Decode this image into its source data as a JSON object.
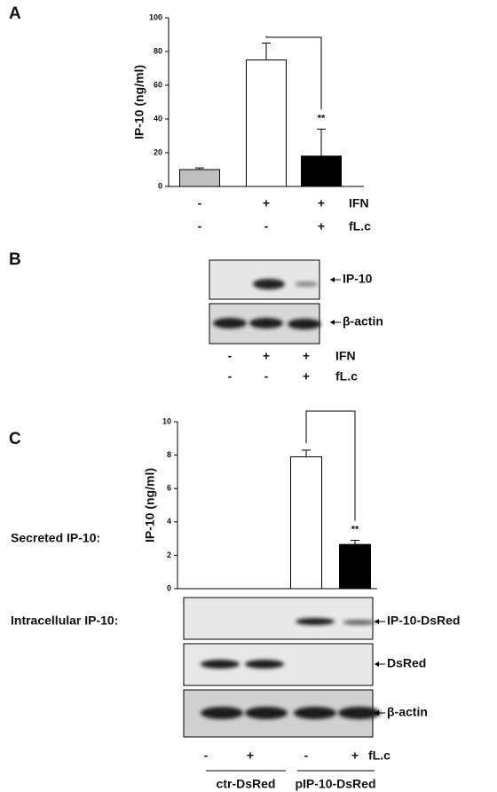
{
  "panel_labels": [
    "A",
    "B",
    "C"
  ],
  "chart_data": [
    {
      "type": "bar",
      "y_label": "IP-10 (ng/ml)",
      "values": [
        10,
        75,
        18
      ],
      "errors": [
        1,
        10,
        16
      ],
      "colors": [
        "#c0c0c0",
        "#ffffff",
        "#000000"
      ],
      "ylim": [
        0,
        100
      ],
      "yticks": [
        0,
        20,
        40,
        60,
        80,
        100
      ],
      "annotation": "**",
      "condition_rows": [
        {
          "name": "IFN",
          "signs": [
            "-",
            "+",
            "+"
          ]
        },
        {
          "name": "fL.c",
          "signs": [
            "-",
            "-",
            "+"
          ]
        }
      ]
    },
    {
      "type": "bar",
      "y_label": "IP-10 (ng/ml)",
      "values": [
        0,
        0,
        7.9,
        2.65
      ],
      "errors": [
        0,
        0,
        0.4,
        0.25
      ],
      "colors": [
        "#ffffff",
        "#000000",
        "#ffffff",
        "#000000"
      ],
      "ylim": [
        0,
        10
      ],
      "yticks": [
        0,
        2,
        4,
        6,
        8,
        10
      ],
      "annotation": "**",
      "condition_rows": [
        {
          "name": "fL.c",
          "signs": [
            "-",
            "+",
            "-",
            "+"
          ]
        }
      ],
      "groups": [
        "ctr-DsRed",
        "pIP-10-DsRed"
      ]
    }
  ],
  "blot_b": {
    "labels": [
      "IP-10",
      "β-actin"
    ],
    "condition_rows": [
      {
        "name": "IFN",
        "signs": [
          "-",
          "+",
          "+"
        ]
      },
      {
        "name": "fL.c",
        "signs": [
          "-",
          "-",
          "+"
        ]
      }
    ]
  },
  "blot_c": {
    "labels": [
      "IP-10-DsRed",
      "DsRed",
      "β-actin"
    ]
  },
  "section_labels": [
    "Secreted IP-10:",
    "Intracellular IP-10:"
  ]
}
